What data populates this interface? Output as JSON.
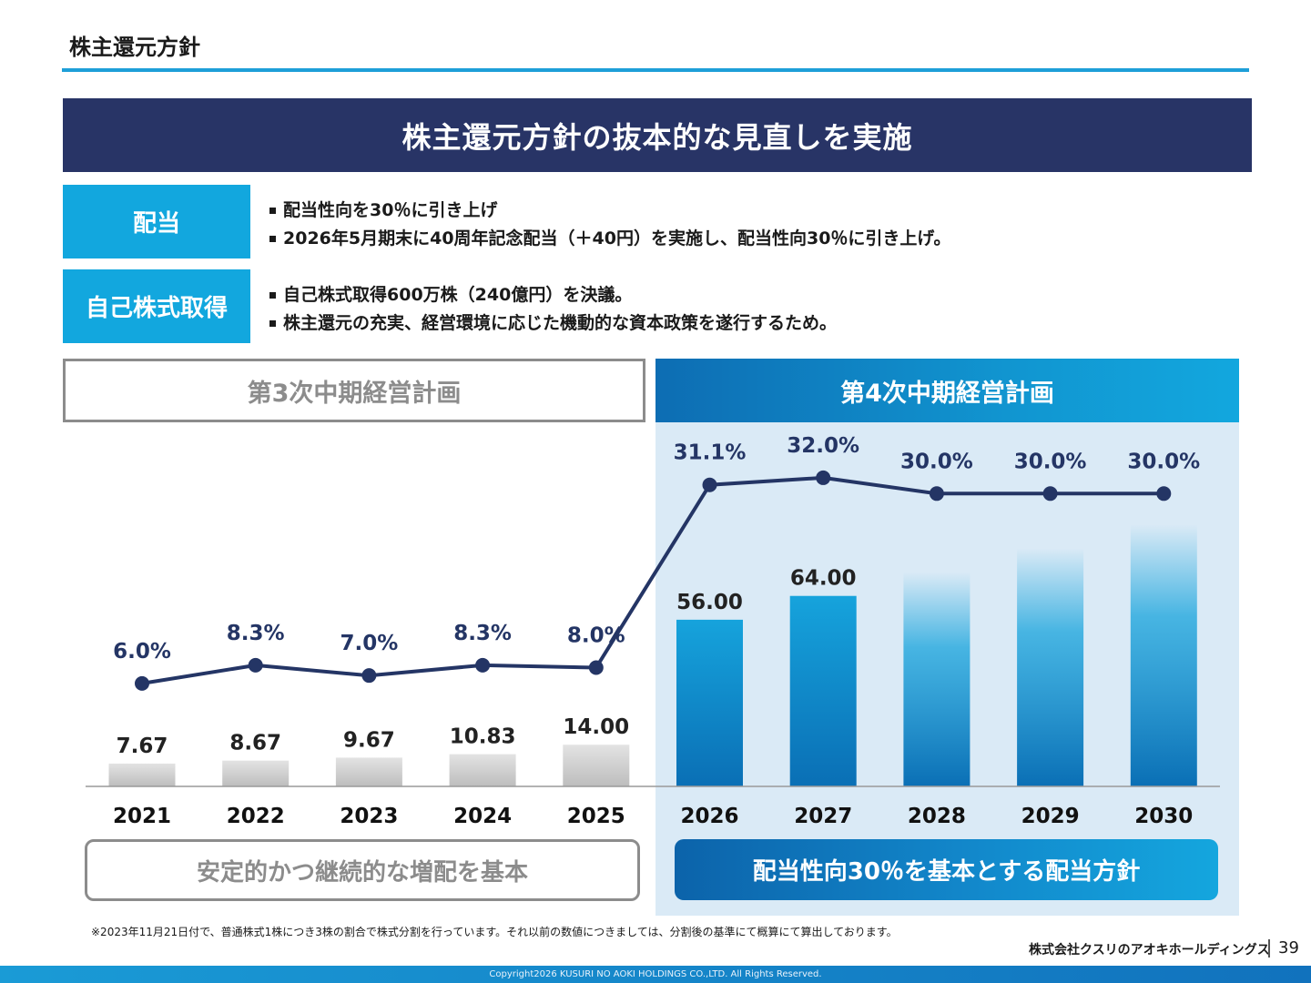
{
  "header": {
    "title": "株主還元方針"
  },
  "banner": {
    "text": "株主還元方針の抜本的な見直しを実施"
  },
  "policies": [
    {
      "label": "配当",
      "bullets": [
        "配当性向を30％に引き上げ",
        "2026年5月期末に40周年記念配当（＋40円）を実施し、配当性向30％に引き上げ。"
      ]
    },
    {
      "label": "自己株式取得",
      "bullets": [
        "自己株式取得600万株（240億円）を決議。",
        "株主還元の充実、経営環境に応じた機動的な資本政策を遂行するため。"
      ]
    }
  ],
  "plans": {
    "third": {
      "label": "第3次中期経営計画",
      "summary": "安定的かつ継続的な増配を基本"
    },
    "fourth": {
      "label": "第4次中期経営計画",
      "summary": "配当性向30％を基本とする配当方針"
    }
  },
  "chart_data": {
    "type": "bar",
    "categories": [
      "2021",
      "2022",
      "2023",
      "2024",
      "2025",
      "2026",
      "2027",
      "2028",
      "2029",
      "2030"
    ],
    "series": [
      {
        "kind": "bar",
        "values": [
          7.67,
          8.67,
          9.67,
          10.83,
          14.0,
          56.0,
          64.0,
          72.0,
          80.0,
          88.0
        ],
        "labels": [
          "7.67",
          "8.67",
          "9.67",
          "10.83",
          "14.00",
          "56.00",
          "64.00",
          "",
          "",
          ""
        ]
      },
      {
        "kind": "line",
        "values": [
          6.0,
          8.3,
          7.0,
          8.3,
          8.0,
          31.1,
          32.0,
          30.0,
          30.0,
          30.0
        ],
        "labels": [
          "6.0%",
          "8.3%",
          "7.0%",
          "8.3%",
          "8.0%",
          "31.1%",
          "32.0%",
          "30.0%",
          "30.0%",
          "30.0%"
        ]
      }
    ],
    "colors": {
      "past_bar": "#c9c9c9",
      "plan_bar": "#0f8fce",
      "line": "#243565"
    }
  },
  "footer": {
    "note": "※2023年11月21日付で、普通株式1株につき3株の割合で株式分割を行っています。それ以前の数値につきましては、分割後の基準にて概算にて算出しております。",
    "company": "株式会社クスリのアオキホールディングス",
    "page": "39",
    "copyright": "Copyright2026 KUSURI NO AOKI HOLDINGS CO.,LTD. All Rights Reserved."
  }
}
